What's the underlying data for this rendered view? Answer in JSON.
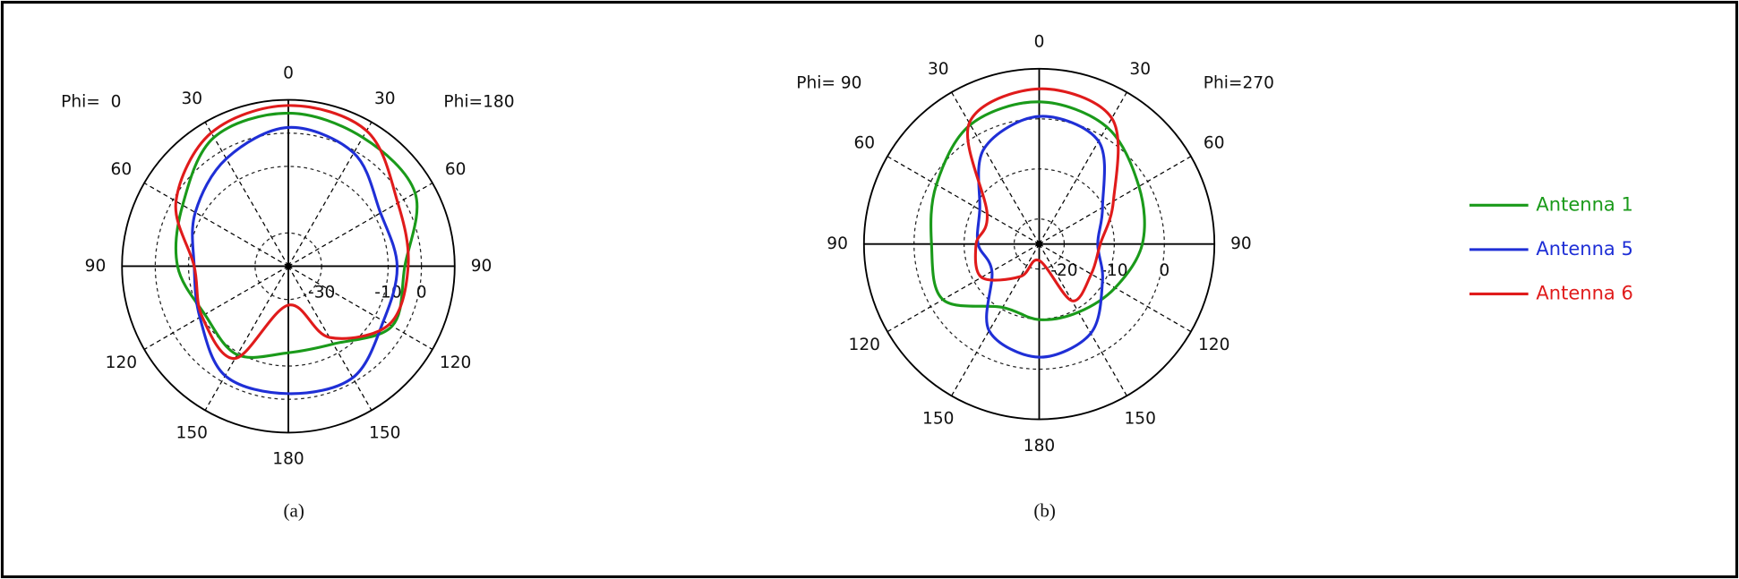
{
  "chart_data": [
    {
      "type": "polar",
      "caption": "(a)",
      "left_label": "Phi=  0",
      "right_label": "Phi=180",
      "x": [
        0,
        30,
        60,
        90,
        120,
        150,
        180,
        210,
        240,
        270,
        300,
        330
      ],
      "xticks": [
        0,
        30,
        60,
        90,
        120,
        150,
        180,
        {
          "value": 210,
          "label": "150"
        },
        {
          "value": 240,
          "label": "120"
        },
        {
          "value": 270,
          "label": "90"
        },
        {
          "value": 300,
          "label": "60"
        },
        {
          "value": 330,
          "label": "30"
        }
      ],
      "rlim": [
        -40,
        10
      ],
      "rticks": [
        -30,
        -10,
        0
      ],
      "series": [
        {
          "name": "Antenna 1",
          "color": "#1a9a1a",
          "values": [
            6,
            4.7,
            4,
            -5,
            -4,
            -13,
            -14,
            -9.3,
            -11,
            -6.7,
            -3.3,
            4.7
          ]
        },
        {
          "name": "Antenna 5",
          "color": "#1f2fd6",
          "values": [
            1.7,
            -0.7,
            -8,
            -7.3,
            -7,
            -1.3,
            -1.7,
            -2,
            -9.3,
            -11.7,
            -7.7,
            -2.7
          ]
        },
        {
          "name": "Antenna 6",
          "color": "#e01b1b",
          "values": [
            8.3,
            7,
            -2,
            -4,
            -5,
            -15.3,
            -28.3,
            -8,
            -10,
            -11.7,
            -1,
            6.3
          ]
        }
      ]
    },
    {
      "type": "polar",
      "caption": "(b)",
      "left_label": "Phi= 90",
      "right_label": "Phi=270",
      "x": [
        0,
        30,
        60,
        90,
        120,
        150,
        180,
        210,
        240,
        270,
        300,
        330
      ],
      "xticks": [
        0,
        30,
        60,
        90,
        120,
        150,
        180,
        {
          "value": 210,
          "label": "150"
        },
        {
          "value": 240,
          "label": "120"
        },
        {
          "value": 270,
          "label": "90"
        },
        {
          "value": 300,
          "label": "60"
        },
        {
          "value": 330,
          "label": "30"
        }
      ],
      "rlim": [
        -25,
        10
      ],
      "rticks": [
        -20,
        -10,
        0
      ],
      "series": [
        {
          "color": "#1a9a1a",
          "values": [
            3.4,
            2,
            -2,
            -4.4,
            -7.5,
            -9.3,
            -9.9,
            -10.4,
            -2.8,
            -3.5,
            -1.3,
            2.5
          ]
        },
        {
          "color": "#1f2fd6",
          "values": [
            0.5,
            -1.3,
            -10.4,
            -13.3,
            -10.4,
            -4.4,
            -2.4,
            -5,
            -14.1,
            -12.8,
            -11.3,
            -3
          ]
        },
        {
          "color": "#e01b1b",
          "values": [
            6,
            4,
            -7.9,
            -12.8,
            -13,
            -11.9,
            -21.7,
            -17.5,
            -11.7,
            -12.4,
            -13,
            2.9
          ]
        }
      ]
    }
  ]
}
